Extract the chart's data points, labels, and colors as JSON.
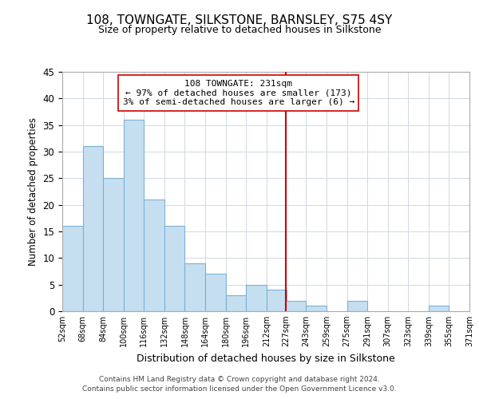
{
  "title": "108, TOWNGATE, SILKSTONE, BARNSLEY, S75 4SY",
  "subtitle": "Size of property relative to detached houses in Silkstone",
  "xlabel": "Distribution of detached houses by size in Silkstone",
  "ylabel": "Number of detached properties",
  "bar_color": "#c6dff0",
  "bar_edge_color": "#7ab0d4",
  "background_color": "#ffffff",
  "grid_color": "#d0d8e0",
  "vline_value": 227,
  "vline_color": "#cc0000",
  "bins": [
    52,
    68,
    84,
    100,
    116,
    132,
    148,
    164,
    180,
    196,
    212,
    227,
    243,
    259,
    275,
    291,
    307,
    323,
    339,
    355,
    371
  ],
  "bin_labels": [
    "52sqm",
    "68sqm",
    "84sqm",
    "100sqm",
    "116sqm",
    "132sqm",
    "148sqm",
    "164sqm",
    "180sqm",
    "196sqm",
    "212sqm",
    "227sqm",
    "243sqm",
    "259sqm",
    "275sqm",
    "291sqm",
    "307sqm",
    "323sqm",
    "339sqm",
    "355sqm",
    "371sqm"
  ],
  "counts": [
    16,
    31,
    25,
    36,
    21,
    16,
    9,
    7,
    3,
    5,
    4,
    2,
    1,
    0,
    2,
    0,
    0,
    0,
    1,
    0
  ],
  "ylim": [
    0,
    45
  ],
  "yticks": [
    0,
    5,
    10,
    15,
    20,
    25,
    30,
    35,
    40,
    45
  ],
  "annotation_title": "108 TOWNGATE: 231sqm",
  "annotation_line1": "← 97% of detached houses are smaller (173)",
  "annotation_line2": "3% of semi-detached houses are larger (6) →",
  "footnote1": "Contains HM Land Registry data © Crown copyright and database right 2024.",
  "footnote2": "Contains public sector information licensed under the Open Government Licence v3.0."
}
